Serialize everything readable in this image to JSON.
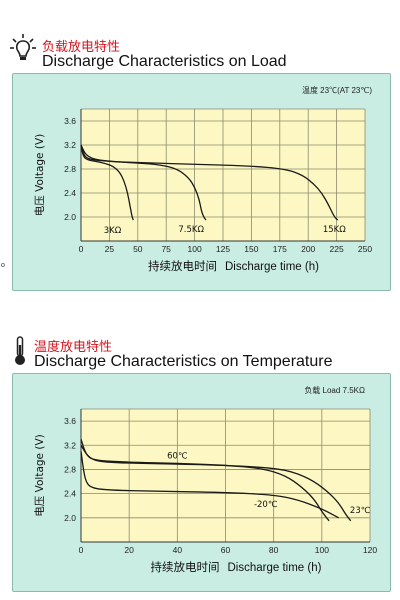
{
  "section1": {
    "title_cn": "负载放电特性",
    "title_en": "Discharge Characteristics on Load",
    "icon": "lightbulb-icon",
    "condition": "温度 23℃(AT 23℃)"
  },
  "section2": {
    "title_cn": "温度放电特性",
    "title_en": "Discharge Characteristics on Temperature",
    "icon": "thermometer-icon",
    "condition": "负载 Load 7.5KΩ"
  },
  "colors": {
    "title_cn": "#d4151d",
    "panel_bg": "#c9ece3",
    "plot_bg": "#fdf8c3",
    "grid": "#8a8a70",
    "curve": "#1a1a1a"
  },
  "stray_mark": "o",
  "chart_data": [
    {
      "type": "line",
      "xlabel_cn": "持续放电时间",
      "xlabel": "Discharge time (h)",
      "ylabel_cn": "电压",
      "ylabel": "Voltage (V)",
      "xlim": [
        0,
        250
      ],
      "ylim": [
        1.6,
        3.8
      ],
      "xticks": [
        0,
        25,
        50,
        75,
        100,
        125,
        150,
        175,
        200,
        225,
        250
      ],
      "yticks": [
        2.0,
        2.4,
        2.8,
        3.2,
        3.6
      ],
      "grid": true,
      "series": [
        {
          "name": "3KΩ",
          "x": [
            0,
            2,
            6,
            12,
            20,
            28,
            34,
            38,
            41,
            43,
            45,
            46
          ],
          "y": [
            3.2,
            3.0,
            2.95,
            2.93,
            2.9,
            2.85,
            2.75,
            2.6,
            2.4,
            2.2,
            2.0,
            1.95
          ]
        },
        {
          "name": "7.5KΩ",
          "x": [
            0,
            3,
            10,
            30,
            50,
            70,
            85,
            95,
            100,
            104,
            106,
            108,
            110
          ],
          "y": [
            3.2,
            3.0,
            2.95,
            2.92,
            2.9,
            2.87,
            2.8,
            2.65,
            2.5,
            2.3,
            2.1,
            2.0,
            1.95
          ]
        },
        {
          "name": "15KΩ",
          "x": [
            0,
            5,
            20,
            60,
            100,
            150,
            180,
            195,
            205,
            212,
            218,
            223,
            226
          ],
          "y": [
            3.2,
            3.0,
            2.93,
            2.9,
            2.88,
            2.85,
            2.8,
            2.7,
            2.55,
            2.4,
            2.2,
            2.0,
            1.95
          ]
        }
      ]
    },
    {
      "type": "line",
      "xlabel_cn": "持续放电时间",
      "xlabel": "Discharge time (h)",
      "ylabel_cn": "电压",
      "ylabel": "Voltage (V)",
      "xlim": [
        0,
        120
      ],
      "ylim": [
        1.6,
        3.8
      ],
      "xticks": [
        0,
        20,
        40,
        60,
        80,
        100,
        120
      ],
      "yticks": [
        2.0,
        2.4,
        2.8,
        3.2,
        3.6
      ],
      "grid": true,
      "series": [
        {
          "name": "60℃",
          "x": [
            0,
            2,
            5,
            20,
            40,
            60,
            75,
            85,
            92,
            97,
            100,
            103
          ],
          "y": [
            3.3,
            3.05,
            2.95,
            2.92,
            2.9,
            2.87,
            2.82,
            2.7,
            2.5,
            2.3,
            2.1,
            1.95
          ]
        },
        {
          "name": "23℃",
          "x": [
            0,
            3,
            8,
            25,
            50,
            70,
            85,
            95,
            102,
            107,
            110,
            112
          ],
          "y": [
            3.2,
            3.0,
            2.92,
            2.9,
            2.88,
            2.85,
            2.8,
            2.65,
            2.45,
            2.25,
            2.05,
            1.95
          ]
        },
        {
          "name": "-20℃",
          "x": [
            0,
            1,
            2,
            4,
            10,
            30,
            60,
            80,
            90,
            100,
            107
          ],
          "y": [
            3.1,
            2.8,
            2.6,
            2.5,
            2.46,
            2.44,
            2.42,
            2.38,
            2.3,
            2.15,
            2.0
          ]
        }
      ]
    }
  ]
}
